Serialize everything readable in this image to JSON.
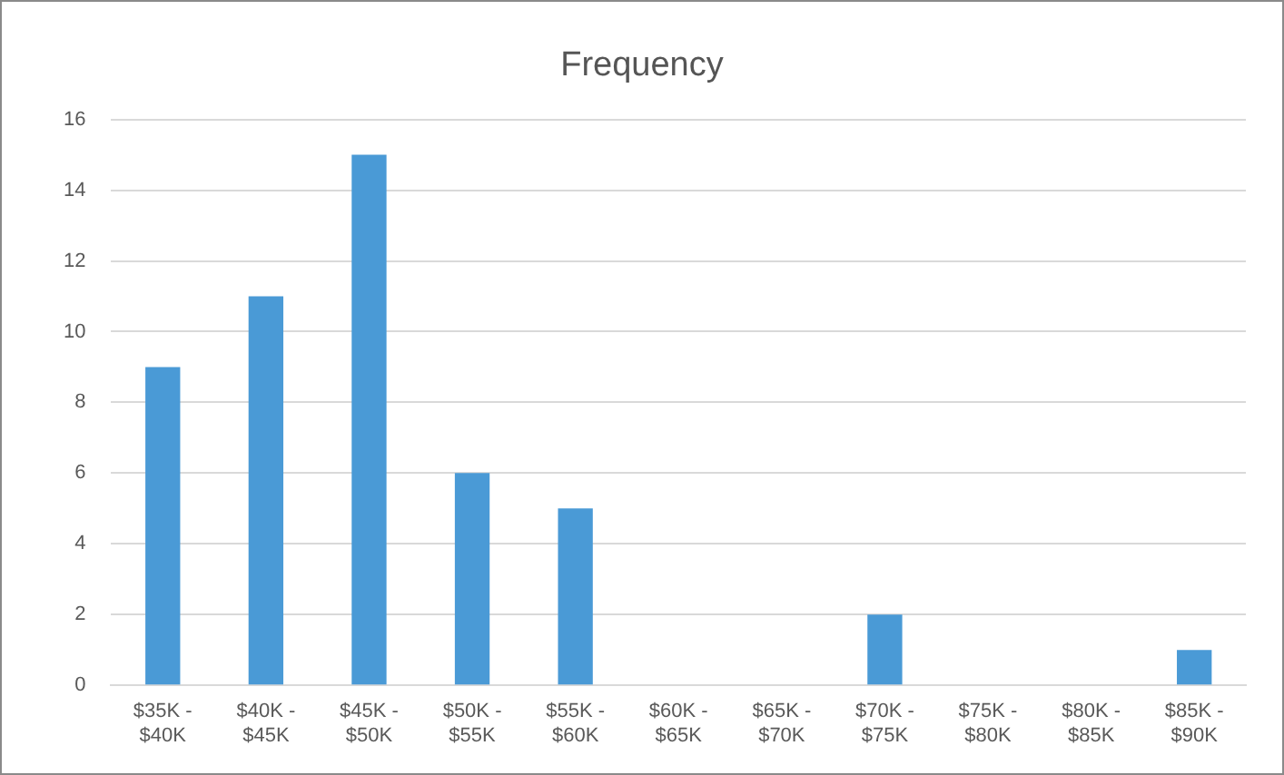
{
  "chart_data": {
    "type": "bar",
    "title": "Frequency",
    "categories": [
      "$35K - $40K",
      "$40K - $45K",
      "$45K - $50K",
      "$50K - $55K",
      "$55K - $60K",
      "$60K - $65K",
      "$65K - $70K",
      "$70K - $75K",
      "$75K - $80K",
      "$80K - $85K",
      "$85K - $90K"
    ],
    "values": [
      9,
      11,
      15,
      6,
      5,
      0,
      0,
      2,
      0,
      0,
      1
    ],
    "color": "#4a9ad6",
    "ylim": [
      0,
      16
    ],
    "yticks": [
      0,
      2,
      4,
      6,
      8,
      10,
      12,
      14,
      16
    ],
    "grid": "y",
    "legend": false
  }
}
